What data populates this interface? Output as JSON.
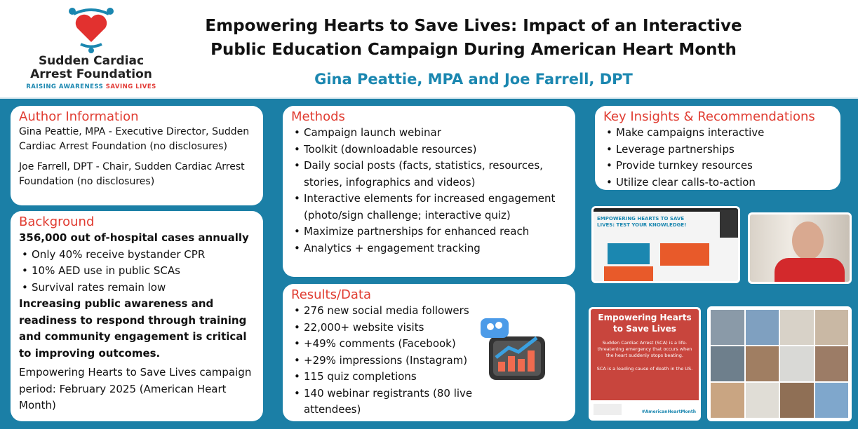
{
  "header": {
    "logo": {
      "name_line1": "Sudden Cardiac",
      "name_line2": "Arrest Foundation",
      "tagline_a": "RAISING AWARENESS",
      "tagline_b": "SAVING LIVES"
    },
    "title": "Empowering Hearts to Save Lives: Impact of an Interactive Public Education Campaign During American Heart Month",
    "authors": "Gina Peattie, MPA and Joe Farrell, DPT"
  },
  "author_info": {
    "heading": "Author Information",
    "entries": [
      "Gina Peattie, MPA - Executive Director, Sudden Cardiac Arrest Foundation (no disclosures)",
      "Joe Farrell, DPT - Chair, Sudden Cardiac Arrest Foundation (no disclosures)"
    ]
  },
  "background": {
    "heading": "Background",
    "lead": "356,000 out of-hospital cases annually",
    "bullets": [
      "Only 40% receive bystander CPR",
      "10% AED use in public SCAs",
      "Survival rates remain low"
    ],
    "emphasis": "Increasing public awareness and readiness to respond through training and community engagement is critical to improving outcomes.",
    "note": "Empowering Hearts to Save Lives campaign period: February 2025 (American Heart Month)"
  },
  "methods": {
    "heading": "Methods",
    "bullets": [
      "Campaign launch webinar",
      "Toolkit (downloadable resources)",
      "Daily social posts (facts, statistics, resources, stories, infographics and videos)",
      "Interactive elements for increased engagement (photo/sign challenge; interactive quiz)",
      "Maximize partnerships for enhanced reach",
      "Analytics + engagement tracking"
    ]
  },
  "results": {
    "heading": "Results/Data",
    "bullets": [
      "276 new social media followers",
      "22,000+ website visits",
      "+49% comments (Facebook)",
      "+29% impressions (Instagram)",
      "115 quiz completions",
      "140 webinar registrants (80 live attendees)"
    ]
  },
  "insights": {
    "heading": "Key Insights & Recommendations",
    "bullets": [
      "Make campaigns interactive",
      "Leverage partnerships",
      "Provide turnkey resources",
      "Utilize clear calls-to-action"
    ]
  },
  "slide": {
    "title": "EMPOWERING HEARTS TO SAVE LIVES: TEST YOUR KNOWLEDGE!"
  },
  "social_card": {
    "title": "Empowering Hearts to Save Lives",
    "line1": "Sudden Cardiac Arrest (SCA) is a life-threatening emergency that occurs when the heart suddenly stops beating.",
    "line2": "SCA is a leading cause of death in the US.",
    "hashtag": "#AmericanHeartMonth"
  },
  "colors": {
    "brand_blue": "#1b7fa6",
    "accent_red": "#e03c31"
  }
}
